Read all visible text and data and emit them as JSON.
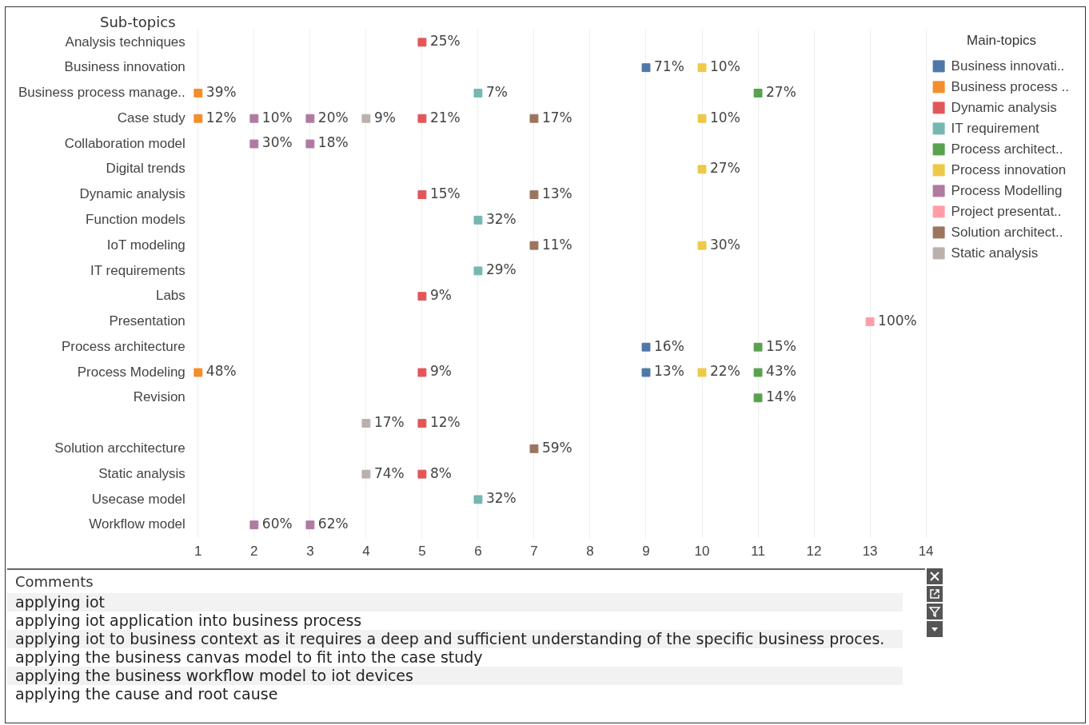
{
  "chart_data": {
    "type": "scatter",
    "orientation": "horizontal",
    "ylabel": "Sub-topics",
    "legend_title": "Main-topics",
    "legend": "right",
    "grid": "x",
    "marker": "square",
    "categories": [
      "Analysis techniques",
      "Business innovation",
      "Business process manage..",
      "Case study",
      "Collaboration model",
      "Digital trends",
      "Dynamic analysis",
      "Function models",
      "IoT modeling",
      "IT requirements",
      "Labs",
      "Presentation",
      "Process architecture",
      "Process Modeling",
      "Revision",
      null,
      "Solution arcchitecture",
      "Static analysis",
      "Usecase model",
      "Workflow model"
    ],
    "xlim": [
      1,
      14
    ],
    "xticks": [
      1,
      2,
      3,
      4,
      5,
      6,
      7,
      8,
      9,
      10,
      11,
      12,
      13,
      14
    ],
    "series": [
      {
        "name": "Business innovati..",
        "color": "#4e79a7",
        "values": [
          null,
          9,
          null,
          null,
          null,
          null,
          null,
          null,
          null,
          null,
          null,
          null,
          9,
          9,
          null,
          null,
          null,
          null,
          null,
          null
        ]
      },
      {
        "name": "Business process ..",
        "color": "#f28e2b",
        "values": [
          null,
          null,
          1,
          1,
          null,
          null,
          null,
          null,
          null,
          null,
          null,
          null,
          null,
          1,
          null,
          null,
          null,
          null,
          null,
          null
        ]
      },
      {
        "name": "Dynamic analysis",
        "color": "#e15759",
        "values": [
          5,
          null,
          null,
          5,
          null,
          null,
          5,
          null,
          null,
          null,
          5,
          null,
          null,
          5,
          null,
          5,
          null,
          5,
          null,
          null
        ]
      },
      {
        "name": "IT requirement",
        "color": "#76b7b2",
        "values": [
          null,
          null,
          6,
          null,
          null,
          null,
          null,
          6,
          null,
          6,
          null,
          null,
          null,
          null,
          null,
          null,
          null,
          null,
          6,
          null
        ]
      },
      {
        "name": "Process architect..",
        "color": "#59a14f",
        "values": [
          null,
          null,
          11,
          null,
          null,
          null,
          null,
          null,
          null,
          null,
          null,
          null,
          11,
          11,
          11,
          null,
          null,
          null,
          null,
          null
        ]
      },
      {
        "name": "Process innovation",
        "color": "#edc948",
        "values": [
          null,
          10,
          null,
          10,
          null,
          10,
          null,
          null,
          10,
          null,
          null,
          null,
          null,
          10,
          null,
          null,
          null,
          null,
          null,
          null
        ]
      },
      {
        "name": "Process Modelling",
        "color": "#b07aa1",
        "values": [
          null,
          null,
          null,
          2,
          2,
          null,
          null,
          null,
          null,
          null,
          null,
          null,
          null,
          null,
          null,
          null,
          null,
          null,
          null,
          2
        ]
      },
      {
        "name": "Project presentat..",
        "color": "#ff9da7",
        "values": [
          null,
          null,
          null,
          null,
          null,
          null,
          null,
          null,
          null,
          null,
          null,
          13,
          null,
          null,
          null,
          null,
          null,
          null,
          null,
          null
        ]
      },
      {
        "name": "Solution architect..",
        "color": "#9c755f",
        "values": [
          null,
          null,
          null,
          7,
          null,
          null,
          7,
          null,
          7,
          null,
          null,
          null,
          null,
          null,
          null,
          null,
          7,
          null,
          null,
          null
        ]
      },
      {
        "name": "Static analysis",
        "color": "#bab0ac",
        "values": [
          null,
          null,
          null,
          4,
          null,
          null,
          null,
          null,
          null,
          null,
          null,
          null,
          null,
          null,
          null,
          4,
          null,
          4,
          null,
          null
        ]
      },
      {
        "color": "#b07aa1",
        "values": [
          null,
          null,
          null,
          3,
          3,
          null,
          null,
          null,
          null,
          null,
          null,
          null,
          null,
          null,
          null,
          null,
          null,
          null,
          null,
          3
        ]
      }
    ],
    "annotations": [
      {
        "text": "25%",
        "x": 5,
        "y": "Analysis techniques"
      },
      {
        "text": "71%",
        "x": 9,
        "y": "Business innovation"
      },
      {
        "text": "10%",
        "x": 10,
        "y": "Business innovation"
      },
      {
        "text": "39%",
        "x": 1,
        "y": "Business process manage.."
      },
      {
        "text": "7%",
        "x": 6,
        "y": "Business process manage.."
      },
      {
        "text": "27%",
        "x": 11,
        "y": "Business process manage.."
      },
      {
        "text": "12%",
        "x": 1,
        "y": "Case study"
      },
      {
        "text": "10%",
        "x": 2,
        "y": "Case study"
      },
      {
        "text": "20%",
        "x": 3,
        "y": "Case study"
      },
      {
        "text": "9%",
        "x": 4,
        "y": "Case study"
      },
      {
        "text": "21%",
        "x": 5,
        "y": "Case study"
      },
      {
        "text": "17%",
        "x": 7,
        "y": "Case study"
      },
      {
        "text": "10%",
        "x": 10,
        "y": "Case study"
      },
      {
        "text": "30%",
        "x": 2,
        "y": "Collaboration model"
      },
      {
        "text": "18%",
        "x": 3,
        "y": "Collaboration model"
      },
      {
        "text": "27%",
        "x": 10,
        "y": "Digital trends"
      },
      {
        "text": "15%",
        "x": 5,
        "y": "Dynamic analysis"
      },
      {
        "text": "13%",
        "x": 7,
        "y": "Dynamic analysis"
      },
      {
        "text": "32%",
        "x": 6,
        "y": "Function models"
      },
      {
        "text": "11%",
        "x": 7,
        "y": "IoT modeling"
      },
      {
        "text": "30%",
        "x": 10,
        "y": "IoT modeling"
      },
      {
        "text": "29%",
        "x": 6,
        "y": "IT requirements"
      },
      {
        "text": "9%",
        "x": 5,
        "y": "Labs"
      },
      {
        "text": "100%",
        "x": 13,
        "y": "Presentation"
      },
      {
        "text": "16%",
        "x": 9,
        "y": "Process architecture"
      },
      {
        "text": "15%",
        "x": 11,
        "y": "Process architecture"
      },
      {
        "text": "48%",
        "x": 1,
        "y": "Process Modeling"
      },
      {
        "text": "9%",
        "x": 5,
        "y": "Process Modeling"
      },
      {
        "text": "13%",
        "x": 9,
        "y": "Process Modeling"
      },
      {
        "text": "22%",
        "x": 10,
        "y": "Process Modeling"
      },
      {
        "text": "43%",
        "x": 11,
        "y": "Process Modeling"
      },
      {
        "text": "14%",
        "x": 11,
        "y": "Revision"
      },
      {
        "text": "17%",
        "x": 4
      },
      {
        "text": "12%",
        "x": 5
      },
      {
        "text": "59%",
        "x": 7,
        "y": "Solution arcchitecture"
      },
      {
        "text": "74%",
        "x": 4,
        "y": "Static analysis"
      },
      {
        "text": "8%",
        "x": 5,
        "y": "Static analysis"
      },
      {
        "text": "32%",
        "x": 6,
        "y": "Usecase model"
      },
      {
        "text": "60%",
        "x": 2,
        "y": "Workflow model"
      },
      {
        "text": "62%",
        "x": 3,
        "y": "Workflow model"
      },
      "Comments",
      "applying iot",
      "applying iot application into business process",
      "applying iot to business context as it requires a deep and sufficient understanding of the specific business proces.",
      "applying the business canvas model to fit into the case study",
      "applying the business workflow model to iot devices",
      "applying the cause and root cause"
    ]
  }
}
